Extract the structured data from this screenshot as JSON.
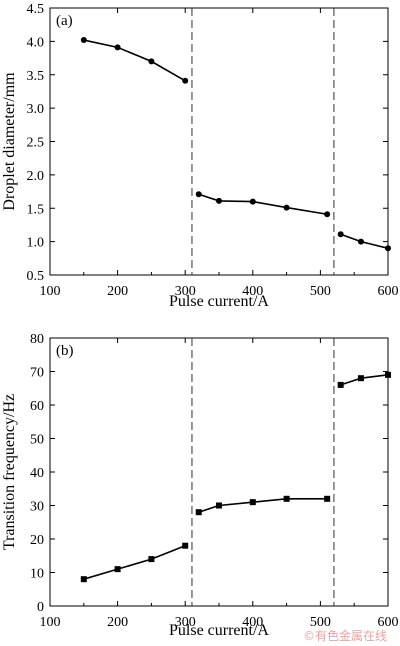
{
  "chart_data": [
    {
      "type": "line",
      "panel_tag": "(a)",
      "xlabel": "Pulse current/A",
      "ylabel": "Droplet diameter/mm",
      "xlim": [
        100,
        600
      ],
      "ylim": [
        0.5,
        4.5
      ],
      "x_ticks": [
        "100",
        "200",
        "300",
        "400",
        "500",
        "600"
      ],
      "y_ticks": [
        "0.5",
        "1.0",
        "1.5",
        "2.0",
        "2.5",
        "3.0",
        "3.5",
        "4.0",
        "4.5"
      ],
      "marker": "circle",
      "segments": [
        {
          "x": [
            150,
            200,
            250,
            300
          ],
          "y": [
            4.02,
            3.91,
            3.7,
            3.41
          ]
        },
        {
          "x": [
            320,
            350,
            400,
            450,
            510
          ],
          "y": [
            1.71,
            1.61,
            1.6,
            1.51,
            1.41
          ]
        },
        {
          "x": [
            530,
            560,
            600
          ],
          "y": [
            1.11,
            1.0,
            0.9
          ]
        }
      ],
      "dividers_x": [
        310,
        520
      ],
      "grid": false
    },
    {
      "type": "line",
      "panel_tag": "(b)",
      "xlabel": "Pulse current/A",
      "ylabel": "Transition frequency/Hz",
      "xlim": [
        100,
        600
      ],
      "ylim": [
        0,
        80
      ],
      "x_ticks": [
        "100",
        "200",
        "300",
        "400",
        "500",
        "600"
      ],
      "y_ticks": [
        "0",
        "10",
        "20",
        "30",
        "40",
        "50",
        "60",
        "70",
        "80"
      ],
      "marker": "square",
      "segments": [
        {
          "x": [
            150,
            200,
            250,
            300
          ],
          "y": [
            8,
            11,
            14,
            18
          ]
        },
        {
          "x": [
            320,
            350,
            400,
            450,
            510
          ],
          "y": [
            28,
            30,
            31,
            32,
            32
          ]
        },
        {
          "x": [
            530,
            560,
            600
          ],
          "y": [
            66,
            68,
            69
          ]
        }
      ],
      "dividers_x": [
        310,
        520
      ],
      "grid": false
    }
  ],
  "watermark": "©有色金属在线"
}
